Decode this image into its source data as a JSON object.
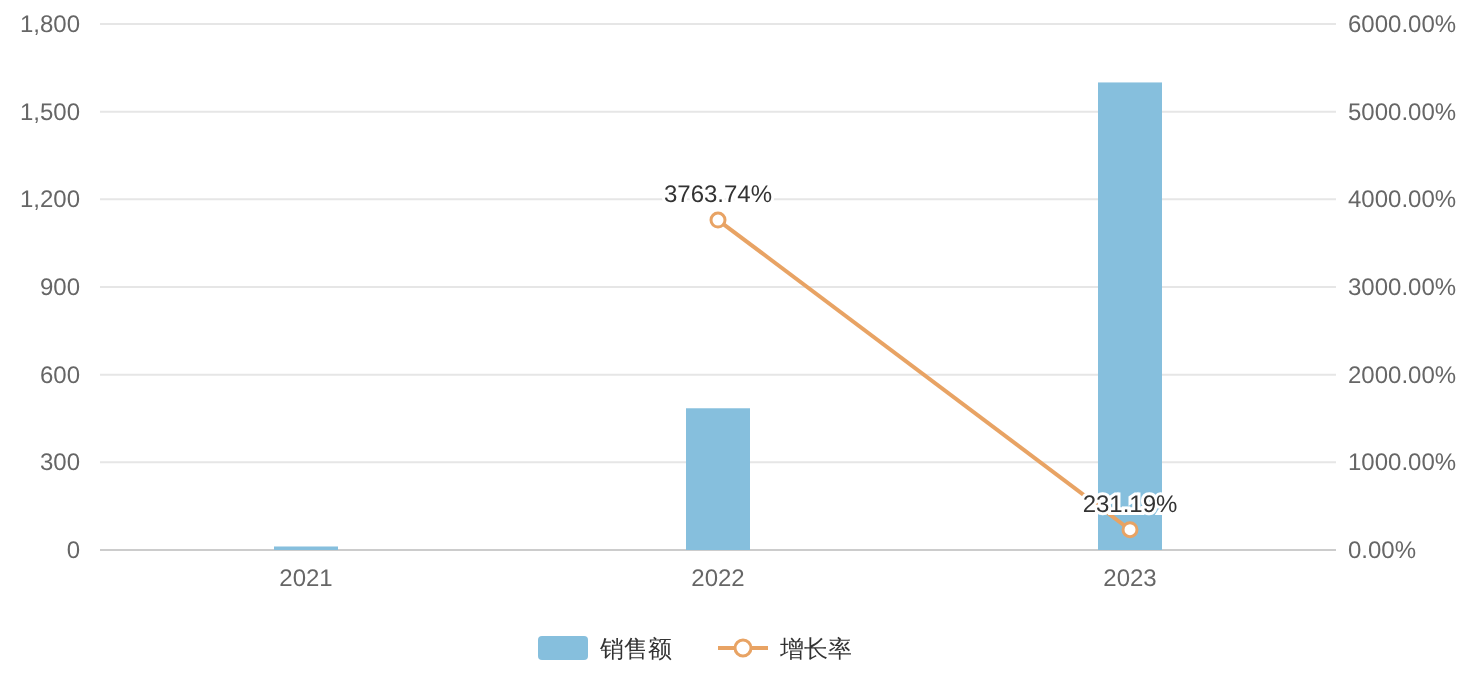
{
  "chart_data": {
    "type": "bar",
    "categories": [
      "2021",
      "2022",
      "2023"
    ],
    "series": [
      {
        "name": "销售额",
        "color": "#86bfdd",
        "values": [
          12,
          485,
          1600
        ]
      },
      {
        "name": "增长率",
        "type": "line",
        "axis": "y2",
        "color": "#e8a364",
        "marker": "circle",
        "values": [
          null,
          3763.74,
          231.19
        ],
        "value_labels": [
          null,
          "3763.74%",
          "231.19%"
        ]
      }
    ],
    "ylim": [
      0,
      1800
    ],
    "yticks": [
      0,
      300,
      600,
      900,
      {
        "value": 1200,
        "label": "1,200"
      },
      {
        "value": 1500,
        "label": "1,500"
      },
      {
        "value": 1800,
        "label": "1,800"
      }
    ],
    "y2lim": [
      0,
      6000
    ],
    "y2ticks": [
      {
        "value": 0,
        "label": "0.00%"
      },
      {
        "value": 1000,
        "label": "1000.00%"
      },
      {
        "value": 2000,
        "label": "2000.00%"
      },
      {
        "value": 3000,
        "label": "3000.00%"
      },
      {
        "value": 4000,
        "label": "4000.00%"
      },
      {
        "value": 5000,
        "label": "5000.00%"
      },
      {
        "value": 6000,
        "label": "6000.00%"
      }
    ],
    "grid": "y",
    "legend": "bottom"
  }
}
